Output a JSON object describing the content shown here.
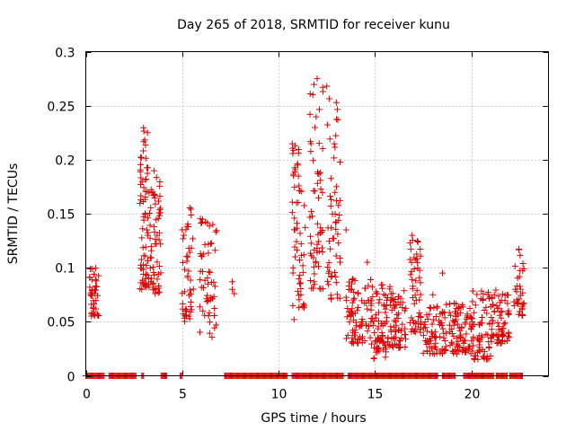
{
  "chart_data": {
    "type": "scatter",
    "title": "Day 265 of 2018, SRMTID for receiver kunu",
    "xlabel": "GPS time / hours",
    "ylabel": "SRMTID / TECUs",
    "xlim": [
      0,
      24
    ],
    "ylim": [
      0,
      0.3
    ],
    "grid": true,
    "marker": "+",
    "color": "#dd0000",
    "x_ticks": [
      0,
      5,
      10,
      15,
      20
    ],
    "y_ticks": [
      0,
      0.05,
      0.1,
      0.15,
      0.2,
      0.25,
      0.3
    ],
    "y_tick_labels": [
      "0",
      "0.05",
      "0.1",
      "0.15",
      "0.2",
      "0.25",
      "0.3"
    ],
    "series": [
      {
        "name": "SRMTID",
        "clusters": [
          {
            "x": [
              0.2,
              0.7
            ],
            "y": [
              0.055,
              0.1
            ],
            "n": 40
          },
          {
            "x": [
              2.8,
              3.3
            ],
            "y": [
              0.08,
              0.23
            ],
            "n": 70
          },
          {
            "x": [
              3.3,
              3.9
            ],
            "y": [
              0.075,
              0.19
            ],
            "n": 60
          },
          {
            "x": [
              5.0,
              5.6
            ],
            "y": [
              0.05,
              0.16
            ],
            "n": 45
          },
          {
            "x": [
              5.9,
              6.8
            ],
            "y": [
              0.035,
              0.15
            ],
            "n": 55
          },
          {
            "x": [
              10.7,
              11.4
            ],
            "y": [
              0.06,
              0.22
            ],
            "n": 60
          },
          {
            "x": [
              11.6,
              12.3
            ],
            "y": [
              0.08,
              0.275
            ],
            "n": 60
          },
          {
            "x": [
              12.5,
              13.2
            ],
            "y": [
              0.07,
              0.27
            ],
            "n": 55
          },
          {
            "x": [
              13.5,
              14.8
            ],
            "y": [
              0.03,
              0.09
            ],
            "n": 80
          },
          {
            "x": [
              14.8,
              15.8
            ],
            "y": [
              0.015,
              0.085
            ],
            "n": 80
          },
          {
            "x": [
              15.8,
              16.6
            ],
            "y": [
              0.025,
              0.08
            ],
            "n": 60
          },
          {
            "x": [
              16.8,
              17.4
            ],
            "y": [
              0.04,
              0.13
            ],
            "n": 55
          },
          {
            "x": [
              17.5,
              18.7
            ],
            "y": [
              0.02,
              0.065
            ],
            "n": 70
          },
          {
            "x": [
              18.8,
              20.0
            ],
            "y": [
              0.02,
              0.07
            ],
            "n": 80
          },
          {
            "x": [
              20.0,
              21.0
            ],
            "y": [
              0.015,
              0.08
            ],
            "n": 70
          },
          {
            "x": [
              21.0,
              22.0
            ],
            "y": [
              0.03,
              0.08
            ],
            "n": 70
          },
          {
            "x": [
              22.2,
              22.8
            ],
            "y": [
              0.055,
              0.12
            ],
            "n": 35
          }
        ],
        "scattered": [
          [
            7.6,
            0.08
          ],
          [
            7.6,
            0.087
          ],
          [
            7.7,
            0.076
          ],
          [
            5.0,
            0.135
          ],
          [
            10.8,
            0.052
          ],
          [
            11.0,
            0.195
          ],
          [
            12.3,
            0.263
          ],
          [
            12.5,
            0.268
          ],
          [
            13.0,
            0.175
          ],
          [
            13.5,
            0.135
          ],
          [
            14.6,
            0.105
          ],
          [
            18.0,
            0.075
          ],
          [
            18.5,
            0.095
          ],
          [
            18.7,
            0.066
          ],
          [
            12.0,
            0.275
          ],
          [
            3.2,
            0.225
          ]
        ],
        "zero_values_x": [
          [
            0.0,
            1.0
          ],
          [
            1.2,
            2.6
          ],
          [
            2.9,
            3.0
          ],
          [
            3.9,
            4.2
          ],
          [
            4.9,
            5.0
          ],
          [
            7.2,
            10.5
          ],
          [
            10.7,
            13.4
          ],
          [
            13.6,
            18.3
          ],
          [
            18.5,
            19.2
          ],
          [
            19.6,
            21.2
          ],
          [
            21.3,
            21.9
          ],
          [
            22.0,
            22.7
          ]
        ]
      }
    ]
  }
}
